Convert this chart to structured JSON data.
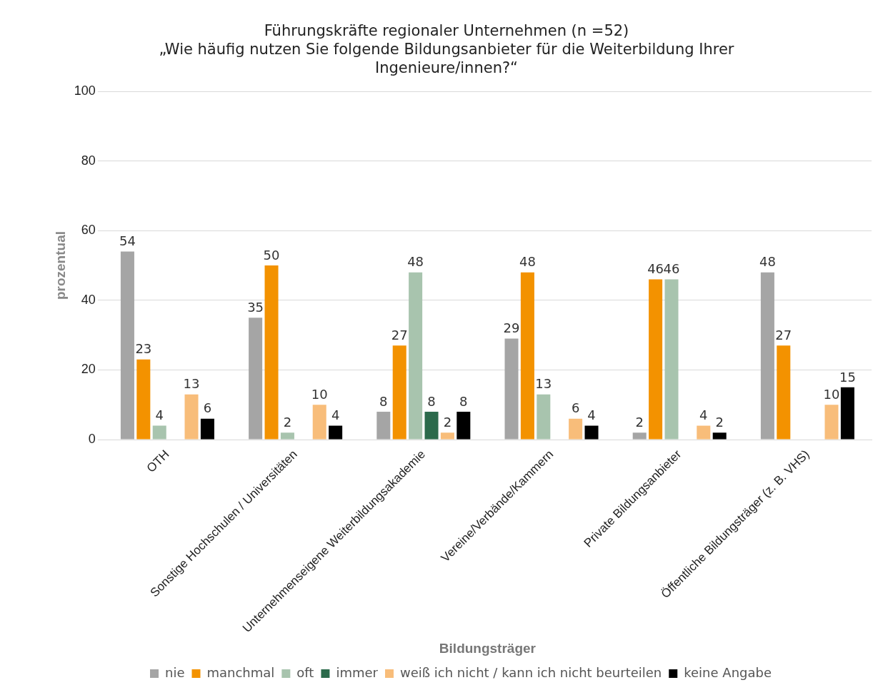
{
  "chart_data": {
    "type": "bar",
    "title": "Führungskräfte regionaler Unternehmen (n =52)",
    "subtitle": "„Wie häufig nutzen Sie folgende Bildungsanbieter für die Weiterbildung Ihrer Ingenieure/innen?“",
    "xlabel": "Bildungsträger",
    "ylabel": "prozentual",
    "categories": [
      "OTH",
      "Sonstige Hochschulen / Universitäten",
      "Unternehmenseigene Weiterbildungsakademie",
      "Vereine/Verbände/Kammern",
      "Private Bildungsanbieter",
      "Öffentliche Bildungsträger (z. B. VHS)"
    ],
    "series": [
      {
        "name": "nie",
        "color": "#a5a5a5",
        "values": [
          54,
          35,
          8,
          29,
          2,
          48
        ]
      },
      {
        "name": "manchmal",
        "color": "#f39200",
        "values": [
          23,
          50,
          27,
          48,
          46,
          27
        ]
      },
      {
        "name": "oft",
        "color": "#a8c4ae",
        "values": [
          4,
          2,
          48,
          13,
          46,
          null
        ]
      },
      {
        "name": "immer",
        "color": "#2b6a4b",
        "values": [
          null,
          null,
          8,
          null,
          null,
          null
        ]
      },
      {
        "name": "weiß ich nicht / kann ich nicht beurteilen",
        "color": "#f8bd7a",
        "values": [
          13,
          10,
          2,
          6,
          4,
          10
        ]
      },
      {
        "name": "keine Angabe",
        "color": "#000000",
        "values": [
          6,
          4,
          8,
          4,
          2,
          15
        ]
      }
    ],
    "ylim": [
      0,
      100
    ],
    "yticks": [
      0,
      20,
      40,
      60,
      80,
      100
    ],
    "grid": "y",
    "legend": "bottom",
    "data_labels": true
  }
}
